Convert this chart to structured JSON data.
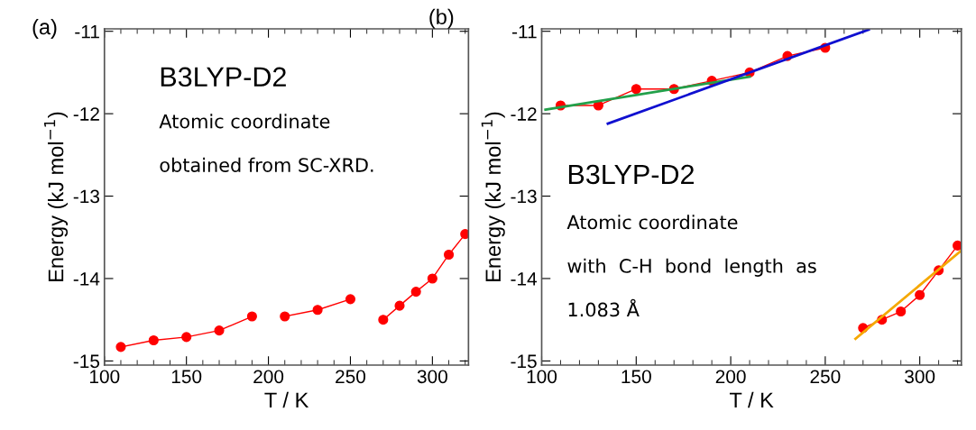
{
  "chart_data": [
    {
      "type": "line",
      "xlabel": "T / K",
      "ylabel": "Energy (kJ mol$^{−1}$)",
      "xlim": [
        100,
        322
      ],
      "ylim": [
        -15.05,
        -10.97
      ],
      "xticks": [
        100,
        150,
        200,
        250,
        300
      ],
      "yticks": [
        -15,
        -14,
        -13,
        -12,
        -11
      ],
      "marker": "circle",
      "grid": false,
      "legend": false,
      "annotations": [
        "(a)",
        "B3LYP-D2",
        "Atomic coordinate",
        "obtained from SC-XRD."
      ],
      "series": [
        {
          "color": "#ff0000",
          "x": [
            110,
            130,
            150,
            170,
            190,
            200,
            210,
            230,
            250,
            260,
            270,
            280,
            290,
            300,
            310,
            320
          ],
          "values": [
            -14.83,
            -14.75,
            -14.71,
            -14.63,
            -14.46,
            null,
            -14.46,
            -14.38,
            -14.25,
            null,
            -14.5,
            -14.33,
            -14.16,
            -14.0,
            -13.71,
            -13.46
          ]
        }
      ]
    },
    {
      "type": "line",
      "xlabel": "T / K",
      "ylabel": "Energy (kJ mol$^{−1}$)",
      "xlim": [
        100,
        322
      ],
      "ylim": [
        -15.05,
        -10.97
      ],
      "xticks": [
        100,
        150,
        200,
        250,
        300
      ],
      "yticks": [
        -15,
        -14,
        -13,
        -12,
        -11
      ],
      "marker": "circle",
      "grid": false,
      "legend": false,
      "annotations": [
        "(b)",
        "B3LYP-D2",
        "Atomic coordinate",
        "with  C-H  bond  length  as",
        "1.083 Å"
      ],
      "series": [
        {
          "color": "#ff0000",
          "x": [
            110,
            130,
            150,
            170,
            190,
            210,
            230,
            250,
            260,
            270,
            280,
            290,
            300,
            310,
            320
          ],
          "values": [
            -11.9,
            -11.9,
            -11.7,
            -11.7,
            -11.6,
            -11.5,
            -11.3,
            -11.2,
            null,
            -14.6,
            -14.5,
            -14.4,
            -14.2,
            -13.9,
            -13.6
          ]
        },
        {
          "type": "line",
          "marker": "none",
          "color": "#22a04a",
          "x": [
            102,
            210
          ],
          "values": [
            -11.95,
            -11.55
          ]
        },
        {
          "type": "line",
          "marker": "none",
          "color": "#1010d0",
          "x": [
            135,
            273
          ],
          "values": [
            -12.12,
            -10.98
          ]
        },
        {
          "type": "line",
          "marker": "none",
          "color": "#f5a800",
          "x": [
            266,
            322
          ],
          "values": [
            -14.73,
            -13.66
          ]
        }
      ]
    }
  ]
}
